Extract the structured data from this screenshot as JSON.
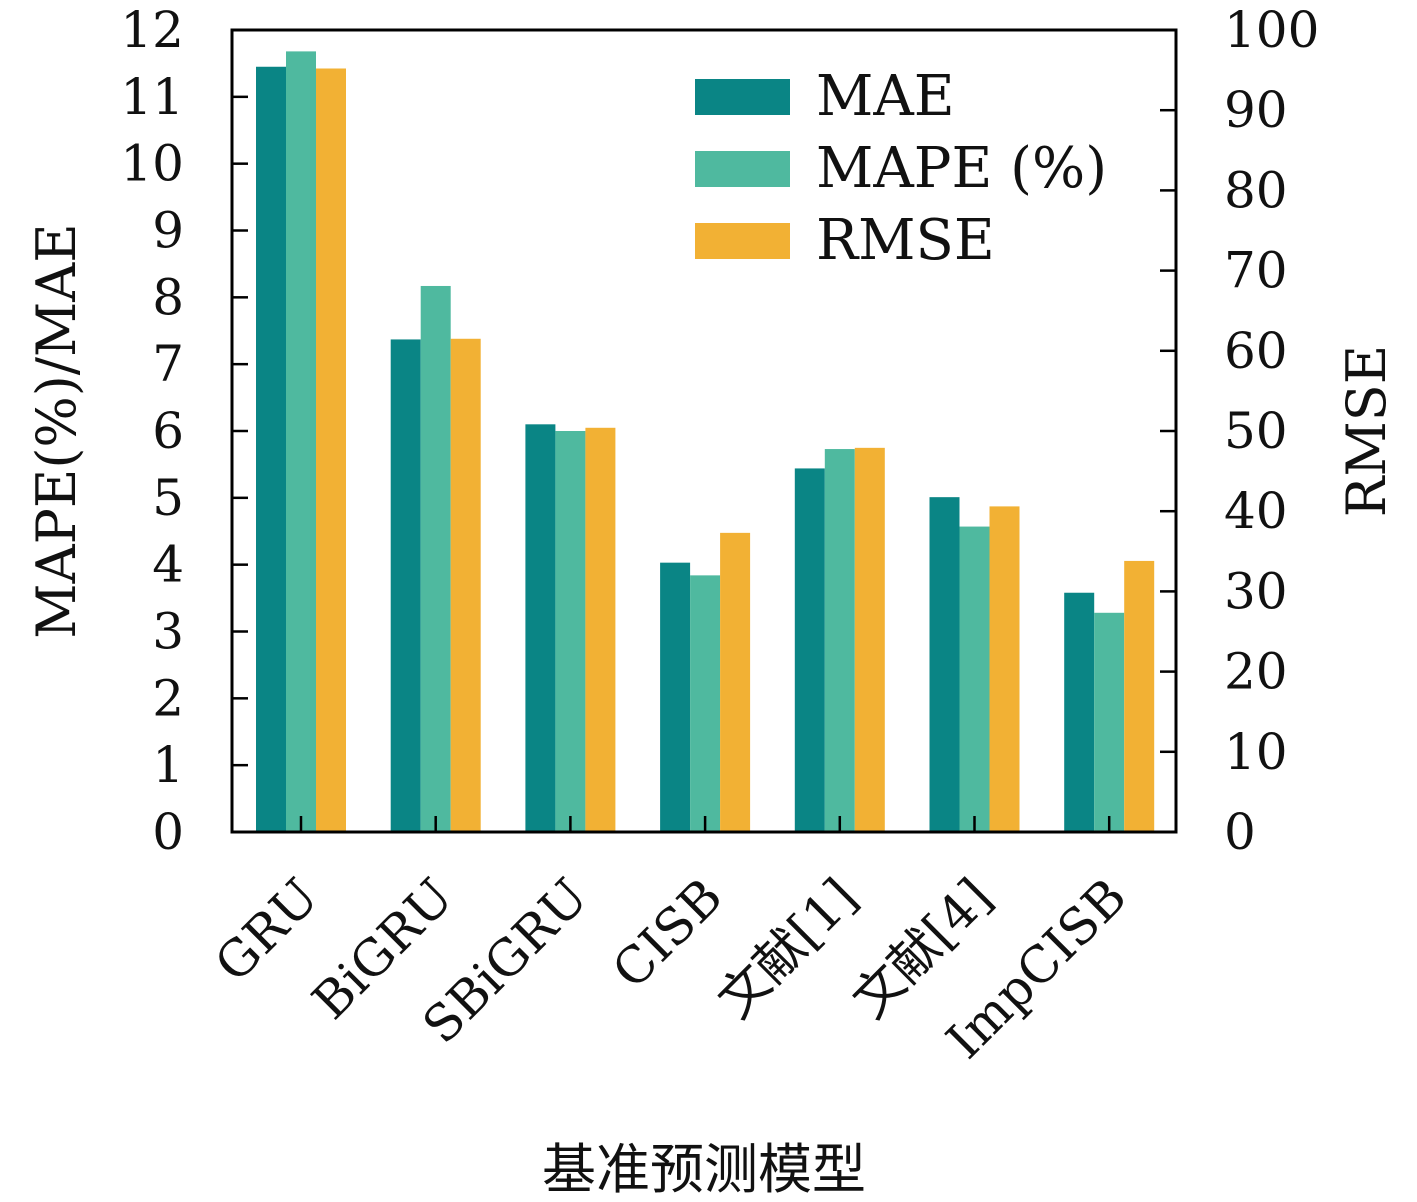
{
  "chart_data": {
    "type": "bar",
    "categories": [
      "GRU",
      "BiGRU",
      "SBiGRU",
      "CISB",
      "文献[1]",
      "文献[4]",
      "ImpCISB"
    ],
    "series": [
      {
        "name": "MAE",
        "axis": "left",
        "color": "#0a8585",
        "values": [
          11.45,
          7.37,
          6.1,
          4.03,
          5.44,
          5.01,
          3.58
        ]
      },
      {
        "name": "MAPE (%)",
        "axis": "left",
        "color": "#4fb99f",
        "values": [
          11.68,
          8.17,
          6.0,
          3.84,
          5.73,
          4.57,
          3.28
        ]
      },
      {
        "name": "RMSE",
        "axis": "right",
        "color": "#f2b134",
        "values": [
          95.2,
          61.5,
          50.4,
          37.3,
          47.9,
          40.6,
          33.8
        ]
      }
    ],
    "xlabel": "基准预测模型",
    "ylabel_left": "MAPE(%)/MAE",
    "ylabel_right": "RMSE",
    "ylim_left": [
      0,
      12
    ],
    "ylim_right": [
      0,
      100
    ],
    "yticks_left": [
      "0",
      "1",
      "2",
      "3",
      "4",
      "5",
      "6",
      "7",
      "8",
      "9",
      "10",
      "11",
      "12"
    ],
    "yticks_right": [
      "0",
      "10",
      "20",
      "30",
      "40",
      "50",
      "60",
      "70",
      "80",
      "90",
      "100"
    ],
    "grid": false,
    "legend_position": "top-right"
  }
}
